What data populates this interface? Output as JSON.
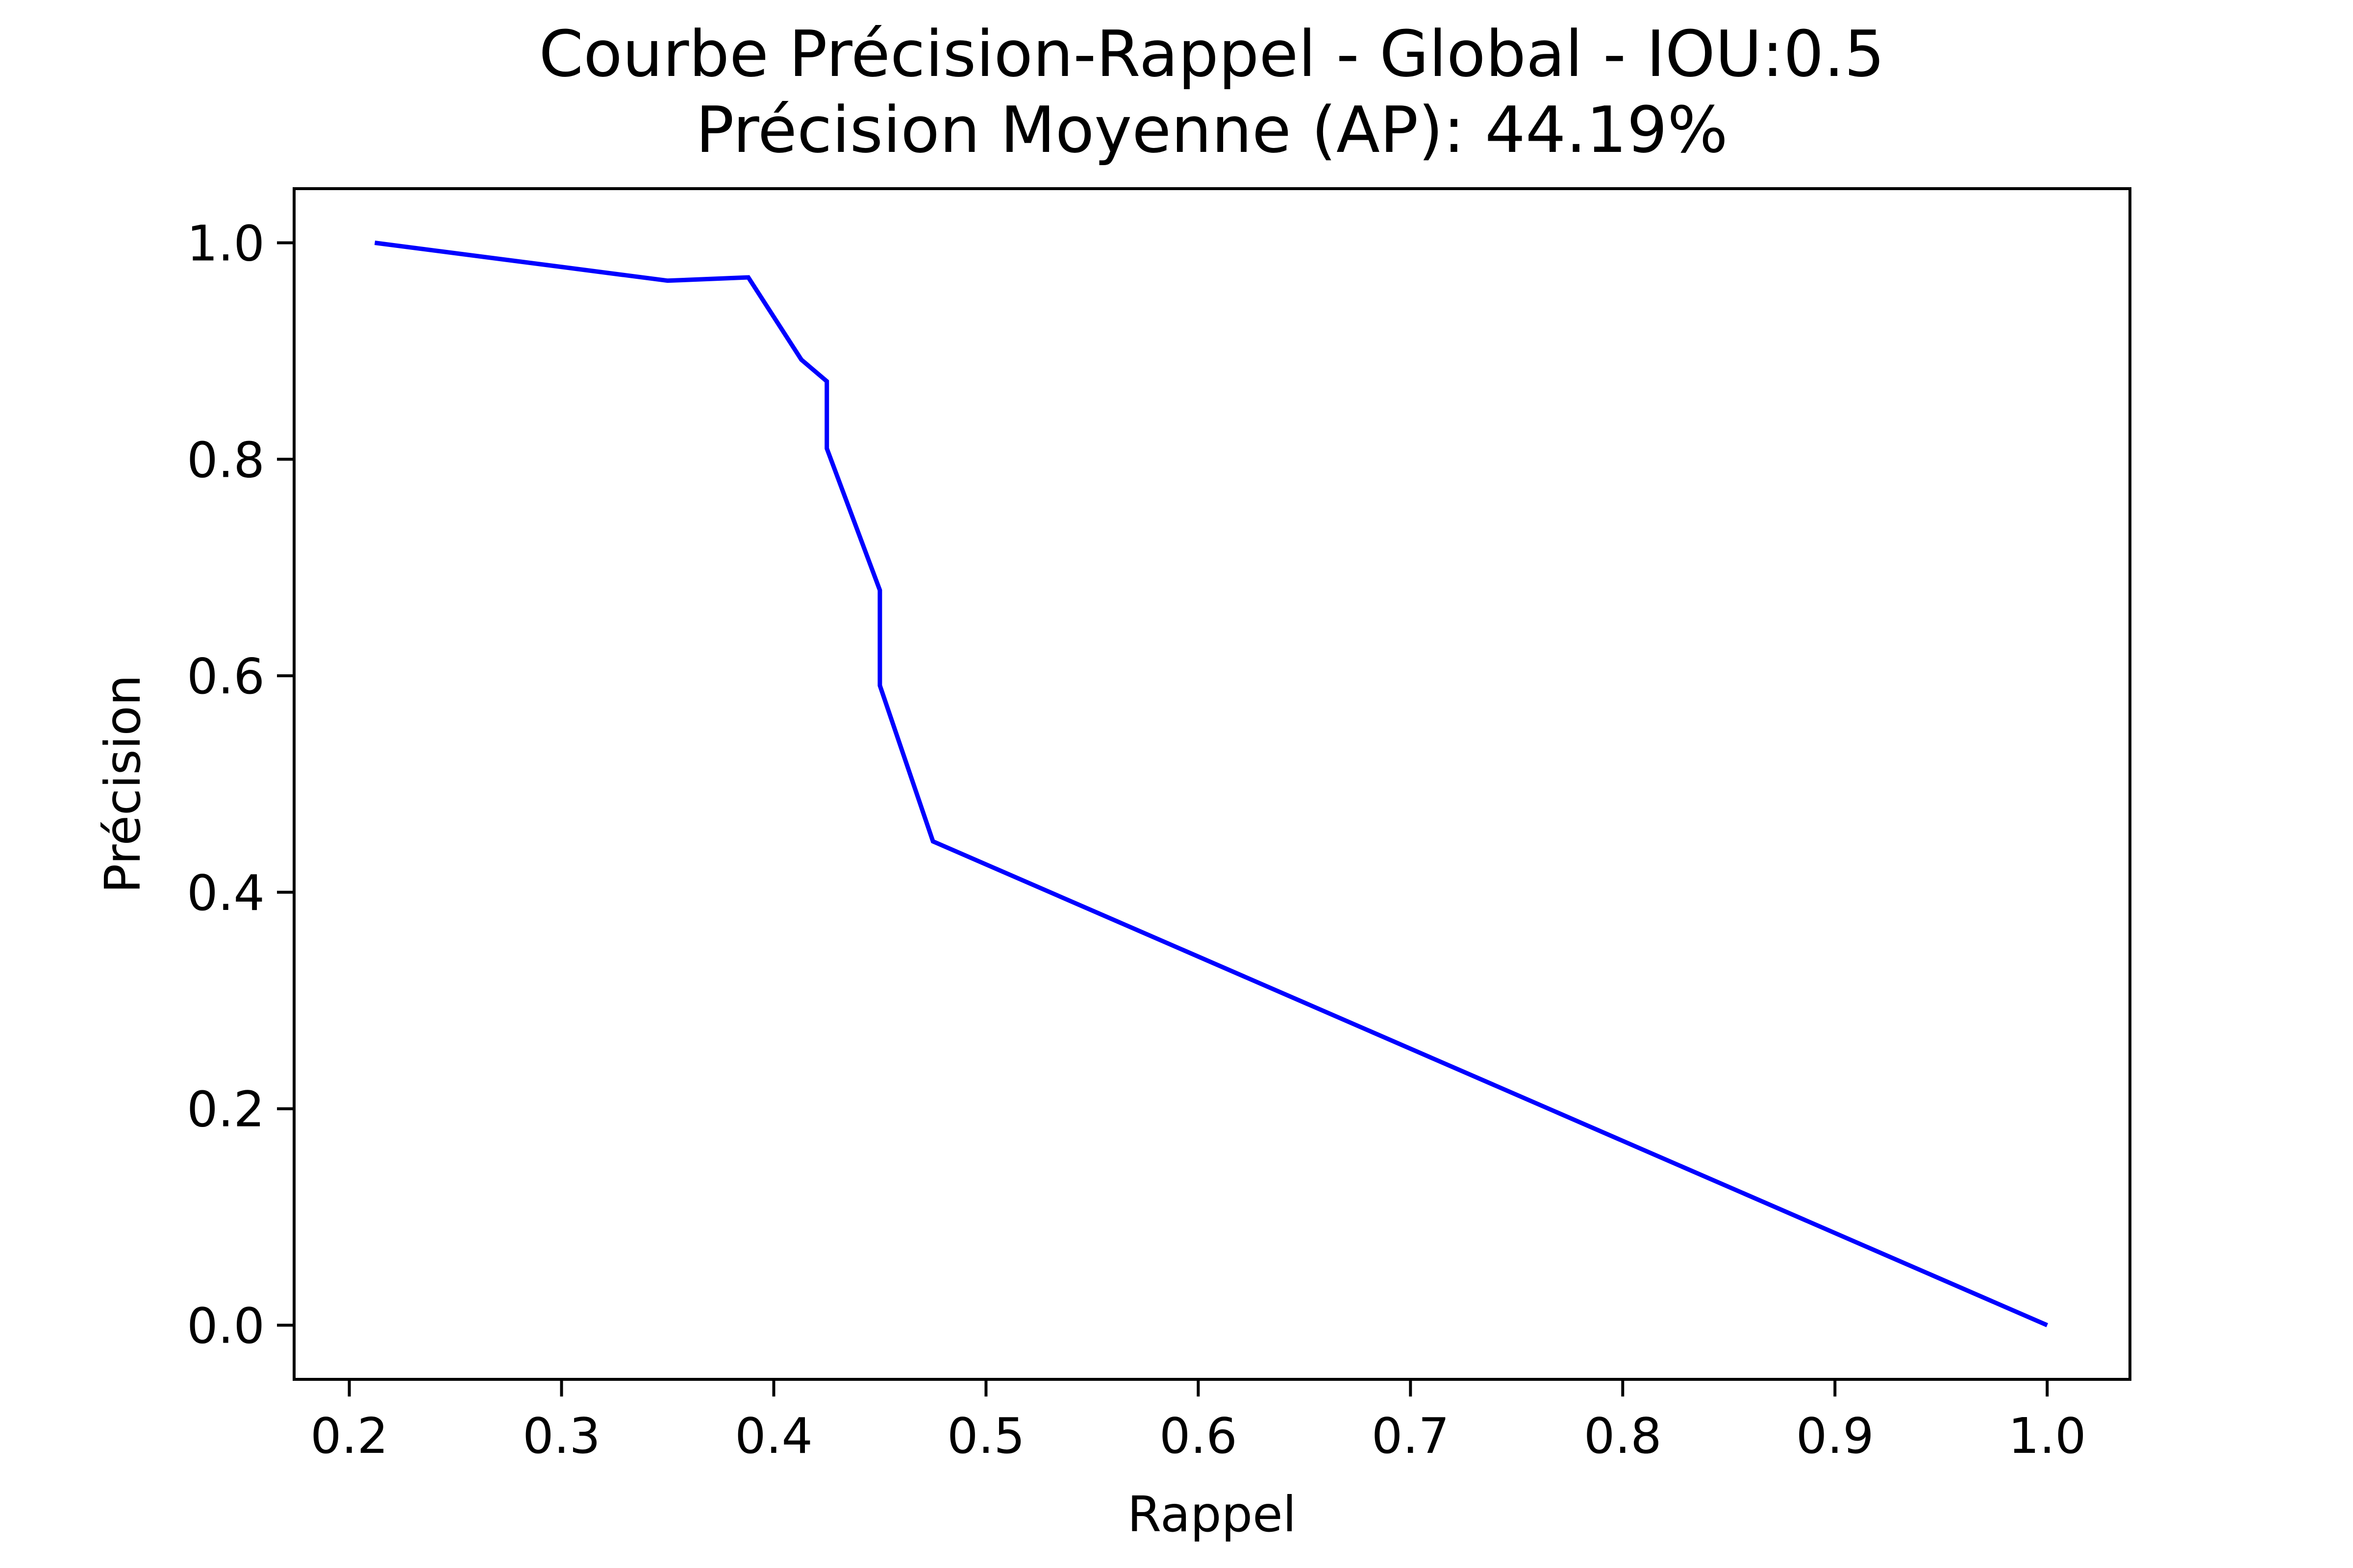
{
  "chart_data": {
    "type": "line",
    "title": "Courbe Précision-Rappel - Global - IOU:0.5",
    "subtitle": "Précision Moyenne (AP): 44.19%",
    "xlabel": "Rappel",
    "ylabel": "Précision",
    "xlim": [
      0.174,
      1.039
    ],
    "ylim": [
      -0.05,
      1.05
    ],
    "xticks": [
      0.2,
      0.3,
      0.4,
      0.5,
      0.6,
      0.7,
      0.8,
      0.9,
      1.0
    ],
    "xtick_labels": [
      "0.2",
      "0.3",
      "0.4",
      "0.5",
      "0.6",
      "0.7",
      "0.8",
      "0.9",
      "1.0"
    ],
    "yticks": [
      0.0,
      0.2,
      0.4,
      0.6,
      0.8,
      1.0
    ],
    "ytick_labels": [
      "0.0",
      "0.2",
      "0.4",
      "0.6",
      "0.8",
      "1.0"
    ],
    "grid": false,
    "legend": false,
    "series": [
      {
        "color": "#0000ff",
        "x": [
          0.212,
          0.35,
          0.388,
          0.413,
          0.425,
          0.425,
          0.45,
          0.45,
          0.475,
          1.0
        ],
        "y": [
          1.0,
          0.965,
          0.968,
          0.892,
          0.872,
          0.81,
          0.679,
          0.591,
          0.447,
          0.0
        ]
      }
    ]
  }
}
